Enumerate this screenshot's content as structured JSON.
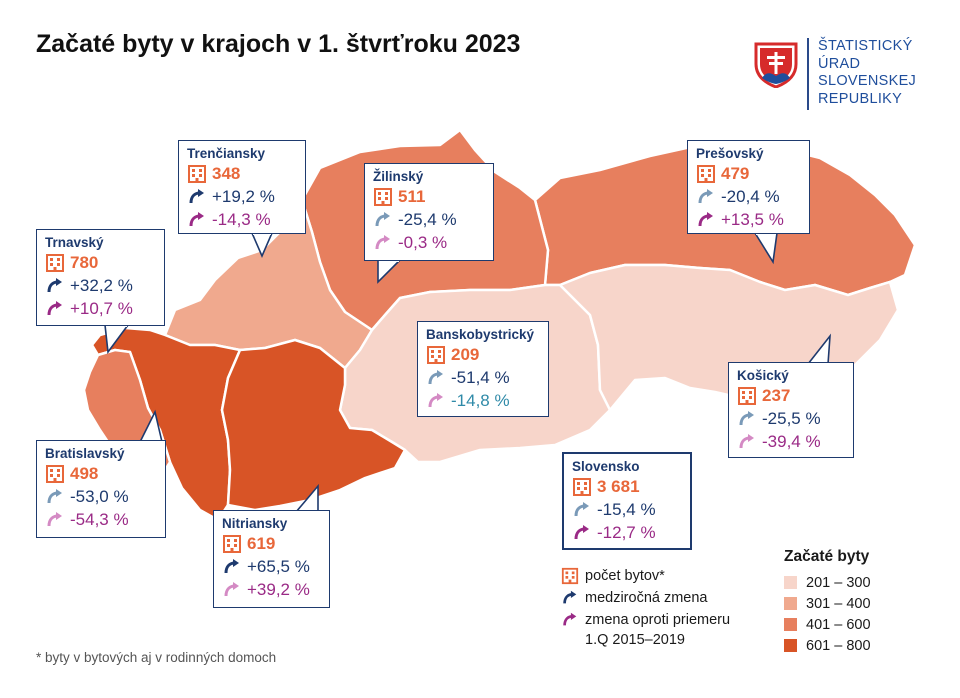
{
  "title": "Začaté byty v krajoch v 1. štvrťroku 2023",
  "logo": {
    "lines": [
      "ŠTATISTICKÝ",
      "ÚRAD",
      "SLOVENSKEJ",
      "REPUBLIKY"
    ],
    "icon": "slovak-coat-of-arms"
  },
  "colors": {
    "c201_300": "#f7d5ca",
    "c301_400": "#f0a98e",
    "c401_600": "#e77f5e",
    "c601_800": "#d85426",
    "border": "#1e3a6e",
    "count": "#e8673a",
    "yoy": "#1e3a6e",
    "avg": "#9a2a86"
  },
  "regions": [
    {
      "id": "trnavsky",
      "name": "Trnavský",
      "count": "780",
      "yoy": "+32,2 %",
      "avg": "+10,7 %",
      "category": "601 – 800"
    },
    {
      "id": "trenciansky",
      "name": "Trenčiansky",
      "count": "348",
      "yoy": "+19,2 %",
      "avg": "-14,3 %",
      "category": "301 – 400"
    },
    {
      "id": "zilinsky",
      "name": "Žilinský",
      "count": "511",
      "yoy": "-25,4 %",
      "avg": "-0,3 %",
      "category": "401 – 600"
    },
    {
      "id": "presovsky",
      "name": "Prešovský",
      "count": "479",
      "yoy": "-20,4 %",
      "avg": "+13,5 %",
      "category": "401 – 600"
    },
    {
      "id": "banskobystricky",
      "name": "Banskobystrický",
      "count": "209",
      "yoy": "-51,4 %",
      "avg": "-14,8 %",
      "category": "201 – 300"
    },
    {
      "id": "kosicky",
      "name": "Košický",
      "count": "237",
      "yoy": "-25,5 %",
      "avg": "-39,4 %",
      "category": "201 – 300"
    },
    {
      "id": "bratislavsky",
      "name": "Bratislavský",
      "count": "498",
      "yoy": "-53,0 %",
      "avg": "-54,3 %",
      "category": "401 – 600"
    },
    {
      "id": "nitriansky",
      "name": "Nitriansky",
      "count": "619",
      "yoy": "+65,5 %",
      "avg": "+39,2 %",
      "category": "601 – 800"
    }
  ],
  "slovensko": {
    "name": "Slovensko",
    "count": "3 681",
    "yoy": "-15,4 %",
    "avg": "-12,7 %"
  },
  "legend": {
    "count": "počet bytov*",
    "yoy": "medziročná zmena",
    "avg_line1": "zmena oproti priemeru",
    "avg_line2": "1.Q 2015–2019"
  },
  "scale": {
    "title": "Začaté byty",
    "ranges": [
      "201 – 300",
      "301 – 400",
      "401 – 600",
      "601 – 800"
    ]
  },
  "footnote": "* byty v bytových aj v rodinných domoch"
}
